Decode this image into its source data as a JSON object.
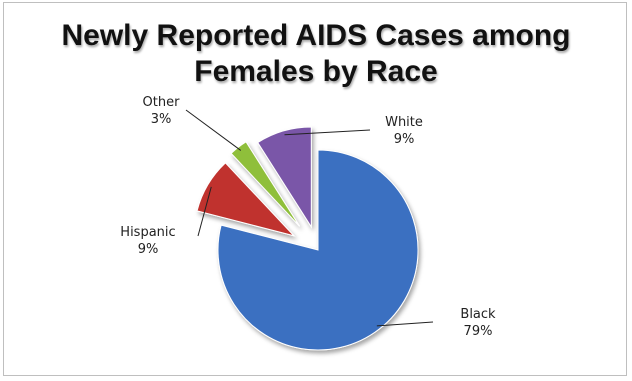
{
  "chart_data": {
    "type": "pie",
    "title_line1": "Newly Reported AIDS Cases among",
    "title_line2": "Females by Race",
    "slices": [
      {
        "name": "Black",
        "value_label": "79%",
        "value": 79,
        "color": "#3a6fc1"
      },
      {
        "name": "Hispanic",
        "value_label": "9%",
        "value": 9,
        "color": "#c0332f"
      },
      {
        "name": "Other",
        "value_label": "3%",
        "value": 3,
        "color": "#8fbf3a"
      },
      {
        "name": "White",
        "value_label": "9%",
        "value": 9,
        "color": "#7a57a8"
      }
    ],
    "exploded": true,
    "legend": "none",
    "data_labels": "outside with leader lines"
  }
}
